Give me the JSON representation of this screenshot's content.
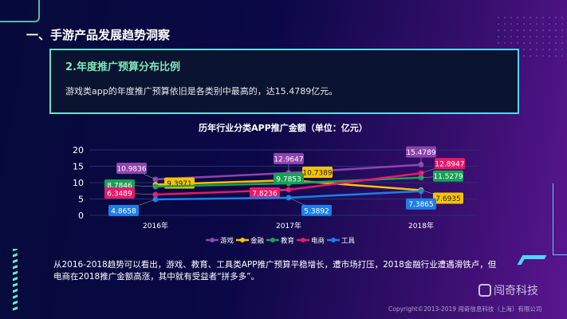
{
  "page": {
    "title": "一、手游产品发展趋势洞察",
    "card": {
      "heading": "2.年度推广预算分布比例",
      "text": "游戏类app的年度推广预算依旧是各类别中最高的，达15.4789亿元。"
    },
    "paragraph": "从2016-2018趋势可以看出，游戏、教育、工具类APP推广预算平稳增长，遭市场打压，2018金融行业遭遇滑铁卢，但电商在2018推广金额高涨，其中就有受益者“拼多多”。",
    "logo": "闯奇科技",
    "copyright": "Copyright©2013-2019 闯奇信息科技（上海）有限公司"
  },
  "chart_data": {
    "type": "line",
    "title": "历年行业分类APP推广金额（单位：亿元）",
    "categories": [
      "2016年",
      "2017年",
      "2018年"
    ],
    "ylim": [
      0,
      20
    ],
    "yticks": [
      "0",
      "5",
      "10",
      "15",
      "20"
    ],
    "grid": true,
    "legend": "bottom",
    "series": [
      {
        "name": "游戏",
        "color": "#8e44ad",
        "values": [
          10.9836,
          12.9647,
          15.4789
        ]
      },
      {
        "name": "金融",
        "color": "#f5c400",
        "values": [
          9.3971,
          10.7389,
          7.6935
        ]
      },
      {
        "name": "教育",
        "color": "#1aa055",
        "values": [
          8.7846,
          9.7853,
          11.5279
        ]
      },
      {
        "name": "电商",
        "color": "#e8196a",
        "values": [
          6.3489,
          7.8236,
          12.8947
        ]
      },
      {
        "name": "工具",
        "color": "#1e7ee8",
        "values": [
          4.8658,
          5.3892,
          7.3865
        ]
      }
    ]
  }
}
